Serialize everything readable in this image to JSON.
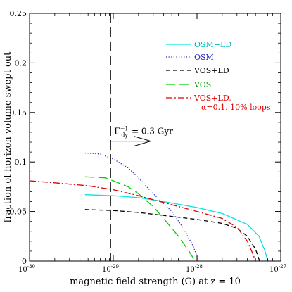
{
  "chart_data": {
    "type": "line",
    "title": "",
    "xlabel": "magnetic field strength (G) at z = 10",
    "ylabel": "fraction of horizon volume swept out",
    "xscale": "log",
    "xlim": [
      1e-30,
      1e-27
    ],
    "ylim": [
      0,
      0.25
    ],
    "x_tick_labels": [
      "10^-30",
      "10^-29",
      "10^-28",
      "10^-27"
    ],
    "y_ticks": [
      0,
      0.05,
      0.1,
      0.15,
      0.2,
      0.25
    ],
    "y_tick_labels": [
      "0",
      "0.05",
      "0.1",
      "0.15",
      "0.2",
      "0.25"
    ],
    "grid": false,
    "legend_position": "top-right",
    "series": [
      {
        "name": "OSM+LD",
        "color": "#00e5e5",
        "dash": "solid",
        "points": [
          [
            4.6e-30,
            0.067
          ],
          [
            1e-29,
            0.066
          ],
          [
            2e-29,
            0.064
          ],
          [
            4e-29,
            0.06
          ],
          [
            1e-28,
            0.054
          ],
          [
            2e-28,
            0.048
          ],
          [
            4e-28,
            0.037
          ],
          [
            5.5e-28,
            0.025
          ],
          [
            6.5e-28,
            0.01
          ],
          [
            7e-28,
            0.0
          ]
        ]
      },
      {
        "name": "OSM",
        "color": "#2222cc",
        "dash": "dotted",
        "points": [
          [
            4.6e-30,
            0.109
          ],
          [
            7e-30,
            0.108
          ],
          [
            1e-29,
            0.103
          ],
          [
            1.5e-29,
            0.094
          ],
          [
            2e-29,
            0.084
          ],
          [
            3e-29,
            0.068
          ],
          [
            5e-29,
            0.05
          ],
          [
            7e-29,
            0.032
          ],
          [
            9e-29,
            0.015
          ],
          [
            1.05e-28,
            0.0
          ]
        ]
      },
      {
        "name": "VOS+LD",
        "color": "#000000",
        "dash": "dashed",
        "points": [
          [
            4.6e-30,
            0.052
          ],
          [
            1e-29,
            0.051
          ],
          [
            2e-29,
            0.049
          ],
          [
            4e-29,
            0.046
          ],
          [
            1e-28,
            0.042
          ],
          [
            2e-28,
            0.038
          ],
          [
            3e-28,
            0.033
          ],
          [
            4e-28,
            0.025
          ],
          [
            5e-28,
            0.012
          ],
          [
            5.6e-28,
            0.0
          ]
        ]
      },
      {
        "name": "VOS",
        "color": "#00cc00",
        "dash": "longdash",
        "points": [
          [
            4.6e-30,
            0.085
          ],
          [
            8e-30,
            0.084
          ],
          [
            1e-29,
            0.081
          ],
          [
            1.5e-29,
            0.075
          ],
          [
            2e-29,
            0.068
          ],
          [
            3e-29,
            0.055
          ],
          [
            4e-29,
            0.043
          ],
          [
            6e-29,
            0.025
          ],
          [
            8e-29,
            0.01
          ],
          [
            9.5e-29,
            0.0
          ]
        ]
      },
      {
        "name": "VOS+LD, α=0.1, 10% loops",
        "color": "#dd0000",
        "dash": "dashdot",
        "points": [
          [
            1e-30,
            0.081
          ],
          [
            2e-30,
            0.079
          ],
          [
            5e-30,
            0.076
          ],
          [
            1e-29,
            0.072
          ],
          [
            2e-29,
            0.066
          ],
          [
            4e-29,
            0.059
          ],
          [
            1e-28,
            0.05
          ],
          [
            2e-28,
            0.043
          ],
          [
            3e-28,
            0.034
          ],
          [
            4e-28,
            0.02
          ],
          [
            4.6e-28,
            0.008
          ],
          [
            5e-28,
            0.0
          ]
        ]
      }
    ],
    "vertical_line": {
      "x": 9.3e-30,
      "style": "long-dashed",
      "color": "#000000"
    },
    "annotation": {
      "text_prefix": "Γ",
      "sub": "dy",
      "sup": "−1",
      "text_value": "= 0.3 Gyr",
      "arrow_from": [
        9.3e-30,
        0.121
      ],
      "arrow_to": [
        2.8e-29,
        0.121
      ]
    },
    "legend": [
      {
        "line1": "OSM+LD",
        "line2": "",
        "color": "#00e5e5",
        "text_color": "#00bcbc",
        "dash": "solid"
      },
      {
        "line1": "OSM",
        "line2": "",
        "color": "#2222cc",
        "text_color": "#2222cc",
        "dash": "dotted"
      },
      {
        "line1": "VOS+LD",
        "line2": "",
        "color": "#000000",
        "text_color": "#000000",
        "dash": "dashed"
      },
      {
        "line1": "VOS",
        "line2": "",
        "color": "#00cc00",
        "text_color": "#00aa00",
        "dash": "longdash"
      },
      {
        "line1": "VOS+LD,",
        "line2": "α=0.1, 10% loops",
        "color": "#dd0000",
        "text_color": "#dd0000",
        "dash": "dashdot"
      }
    ]
  }
}
